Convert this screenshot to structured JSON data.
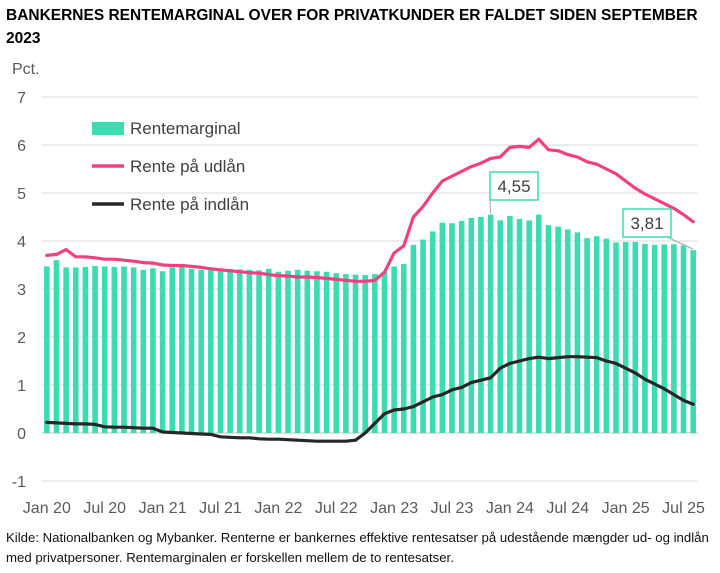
{
  "title": "BANKERNES RENTEMARGINAL OVER FOR PRIVATKUNDER ER FALDET SIDEN SEPTEMBER 2023",
  "source": "Kilde: Nationalbanken og Mybanker. Renterne er bankernes effektive rentesatser på udestående mængder ud- og indlån med privatpersoner. Rentemarginalen er forskellen mellem de to rentesatser.",
  "colors": {
    "margin": "#3ddbb1",
    "lending": "#f0407f",
    "deposit": "#262626",
    "grid": "#d9d9d9",
    "axis_text": "#595959"
  },
  "chart_data": {
    "type": "bar+line",
    "ylabel": "Pct.",
    "ylim": [
      -1,
      7
    ],
    "yticks": [
      -1,
      0,
      1,
      2,
      3,
      4,
      5,
      6,
      7
    ],
    "x_tick_labels": [
      "Jan 20",
      "Jul 20",
      "Jan 21",
      "Jul 21",
      "Jan 22",
      "Jul 22",
      "Jan 23",
      "Jul 23",
      "Jan 24",
      "Jul 24",
      "Jan 25",
      "Jul 25"
    ],
    "x_start": "2020-01",
    "x_end": "2025-07",
    "grid": "horizontal",
    "legend_position": "top-left",
    "series": [
      {
        "name": "Rentemarginal",
        "kind": "bar",
        "values": [
          3.47,
          3.6,
          3.45,
          3.45,
          3.46,
          3.48,
          3.47,
          3.46,
          3.47,
          3.45,
          3.4,
          3.43,
          3.37,
          3.45,
          3.46,
          3.42,
          3.4,
          3.39,
          3.4,
          3.42,
          3.41,
          3.4,
          3.39,
          3.42,
          3.36,
          3.38,
          3.4,
          3.38,
          3.37,
          3.36,
          3.33,
          3.31,
          3.3,
          3.29,
          3.31,
          3.36,
          3.47,
          3.52,
          3.92,
          4.03,
          4.2,
          4.38,
          4.37,
          4.42,
          4.48,
          4.5,
          4.55,
          4.43,
          4.52,
          4.46,
          4.43,
          4.55,
          4.33,
          4.3,
          4.24,
          4.18,
          4.06,
          4.1,
          4.05,
          3.97,
          3.98,
          3.98,
          3.94,
          3.92,
          3.93,
          3.93,
          3.91,
          3.81
        ]
      },
      {
        "name": "Rente på udlån",
        "kind": "line",
        "values": [
          3.7,
          3.72,
          3.82,
          3.67,
          3.67,
          3.65,
          3.62,
          3.62,
          3.6,
          3.58,
          3.55,
          3.54,
          3.5,
          3.49,
          3.49,
          3.47,
          3.45,
          3.42,
          3.4,
          3.38,
          3.36,
          3.34,
          3.33,
          3.3,
          3.28,
          3.27,
          3.25,
          3.25,
          3.24,
          3.22,
          3.2,
          3.18,
          3.16,
          3.16,
          3.18,
          3.35,
          3.75,
          3.9,
          4.5,
          4.72,
          5.0,
          5.25,
          5.35,
          5.45,
          5.55,
          5.62,
          5.72,
          5.75,
          5.95,
          5.97,
          5.95,
          6.12,
          5.9,
          5.88,
          5.8,
          5.75,
          5.65,
          5.6,
          5.5,
          5.4,
          5.25,
          5.1,
          4.98,
          4.88,
          4.78,
          4.68,
          4.55,
          4.4
        ]
      },
      {
        "name": "Rente på indlån",
        "kind": "line",
        "values": [
          0.22,
          0.21,
          0.2,
          0.19,
          0.19,
          0.18,
          0.13,
          0.12,
          0.12,
          0.11,
          0.1,
          0.1,
          0.02,
          0.01,
          0.0,
          -0.01,
          -0.02,
          -0.03,
          -0.08,
          -0.09,
          -0.1,
          -0.1,
          -0.12,
          -0.13,
          -0.13,
          -0.14,
          -0.15,
          -0.16,
          -0.17,
          -0.17,
          -0.17,
          -0.17,
          -0.15,
          0.0,
          0.2,
          0.4,
          0.48,
          0.5,
          0.55,
          0.65,
          0.75,
          0.8,
          0.9,
          0.95,
          1.05,
          1.1,
          1.15,
          1.35,
          1.45,
          1.5,
          1.55,
          1.58,
          1.55,
          1.57,
          1.59,
          1.59,
          1.58,
          1.57,
          1.5,
          1.45,
          1.35,
          1.25,
          1.12,
          1.02,
          0.92,
          0.8,
          0.68,
          0.6
        ]
      }
    ],
    "annotations": [
      {
        "label": "4,55",
        "series": "Rentemarginal",
        "index": 46,
        "value": 4.55
      },
      {
        "label": "3,81",
        "series": "Rentemarginal",
        "index": 67,
        "value": 3.81
      }
    ]
  }
}
